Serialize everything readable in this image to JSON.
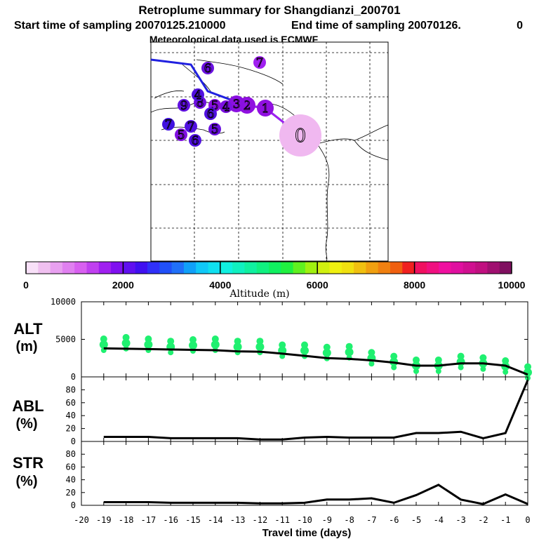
{
  "header": {
    "title": "Retroplume summary for Shangdianzi_200701",
    "start_label": "Start time of sampling 20070125.210000",
    "end_label": "End time of sampling 20070126.",
    "end_value": "0",
    "met_label": "Meteorological data used is ECMWF"
  },
  "map": {
    "markers": [
      {
        "label": "0",
        "color": "#f0b8f0",
        "size": "large"
      },
      {
        "label": "1",
        "color": "#9010e0"
      },
      {
        "label": "2",
        "color": "#9010e0"
      },
      {
        "label": "3",
        "color": "#8a10e0"
      },
      {
        "label": "4",
        "color": "#7a10e0"
      },
      {
        "label": "5",
        "color": "#8a10e0"
      },
      {
        "label": "6",
        "color": "#6a10e0"
      },
      {
        "label": "7",
        "color": "#a020f0"
      },
      {
        "label": "8",
        "color": "#7010e0"
      },
      {
        "label": "9",
        "color": "#6010e0"
      },
      {
        "label": "4",
        "color": "#5010e0"
      },
      {
        "label": "5",
        "color": "#6a10e0"
      },
      {
        "label": "6",
        "color": "#5010e0"
      },
      {
        "label": "7",
        "color": "#4010e0"
      },
      {
        "label": "5",
        "color": "#8010e0"
      },
      {
        "label": "6",
        "color": "#5010e0"
      },
      {
        "label": "7",
        "color": "#5010e0"
      }
    ]
  },
  "colorbar": {
    "ticks": [
      "0",
      "2000",
      "4000",
      "6000",
      "8000",
      "10000"
    ],
    "label": "Altitude (m)",
    "colors": [
      "#f8e0f8",
      "#f0c0f0",
      "#e8a0f0",
      "#e080f0",
      "#d860f0",
      "#c040f0",
      "#a020f0",
      "#8010f0",
      "#6010f0",
      "#4010f0",
      "#3030f8",
      "#2050f8",
      "#2070f8",
      "#10a0f8",
      "#10c8f8",
      "#10e0f0",
      "#10f0e0",
      "#10f0c0",
      "#10f0a0",
      "#10f080",
      "#10f060",
      "#20f040",
      "#60f020",
      "#a0f010",
      "#d0f010",
      "#f0f010",
      "#f0e010",
      "#f0c010",
      "#f0a010",
      "#f08010",
      "#f06010",
      "#f02020",
      "#f01060",
      "#f01080",
      "#f010a0",
      "#e010a0",
      "#d01090",
      "#c01080",
      "#a01070",
      "#801060"
    ]
  },
  "chart_data": [
    {
      "type": "line",
      "title": "ALT",
      "ylabel": "(m)",
      "ylim": [
        0,
        10000
      ],
      "yticks": [
        "0",
        "5000",
        "10000"
      ],
      "x": [
        -19,
        -18,
        -17,
        -16,
        -15,
        -14,
        -13,
        -12,
        -11,
        -10,
        -9,
        -8,
        -7,
        -6,
        -5,
        -4,
        -3,
        -2,
        -1,
        0
      ],
      "values": [
        3800,
        3750,
        3700,
        3650,
        3600,
        3550,
        3400,
        3350,
        3100,
        2800,
        2500,
        2400,
        2200,
        1900,
        1500,
        1500,
        1800,
        1800,
        1500,
        300
      ],
      "scatter": [
        4300,
        4500,
        4300,
        4000,
        4200,
        4300,
        4000,
        4000,
        3500,
        3500,
        3200,
        3300,
        2500,
        2000,
        1500,
        1500,
        2000,
        1800,
        1400,
        600
      ]
    },
    {
      "type": "line",
      "title": "ABL",
      "ylabel": "(%)",
      "ylim": [
        0,
        100
      ],
      "yticks": [
        "0",
        "20",
        "40",
        "60",
        "80"
      ],
      "x": [
        -19,
        -18,
        -17,
        -16,
        -15,
        -14,
        -13,
        -12,
        -11,
        -10,
        -9,
        -8,
        -7,
        -6,
        -5,
        -4,
        -3,
        -2,
        -1,
        0
      ],
      "values": [
        7,
        7,
        7,
        5,
        5,
        5,
        5,
        3,
        3,
        6,
        7,
        6,
        6,
        6,
        13,
        13,
        15,
        5,
        13,
        95
      ]
    },
    {
      "type": "line",
      "title": "STR",
      "ylabel": "(%)",
      "ylim": [
        0,
        100
      ],
      "yticks": [
        "0",
        "20",
        "40",
        "60",
        "80"
      ],
      "x": [
        -19,
        -18,
        -17,
        -16,
        -15,
        -14,
        -13,
        -12,
        -11,
        -10,
        -9,
        -8,
        -7,
        -6,
        -5,
        -4,
        -3,
        -2,
        -1,
        0
      ],
      "values": [
        5,
        5,
        5,
        4,
        4,
        4,
        4,
        3,
        3,
        4,
        9,
        9,
        11,
        4,
        16,
        32,
        9,
        2,
        17,
        2
      ]
    }
  ],
  "xaxis": {
    "ticks": [
      "-20",
      "-19",
      "-18",
      "-17",
      "-16",
      "-15",
      "-14",
      "-13",
      "-12",
      "-11",
      "-10",
      "-9",
      "-8",
      "-7",
      "-6",
      "-5",
      "-4",
      "-3",
      "-2",
      "-1",
      "0"
    ],
    "label": "Travel time (days)"
  }
}
